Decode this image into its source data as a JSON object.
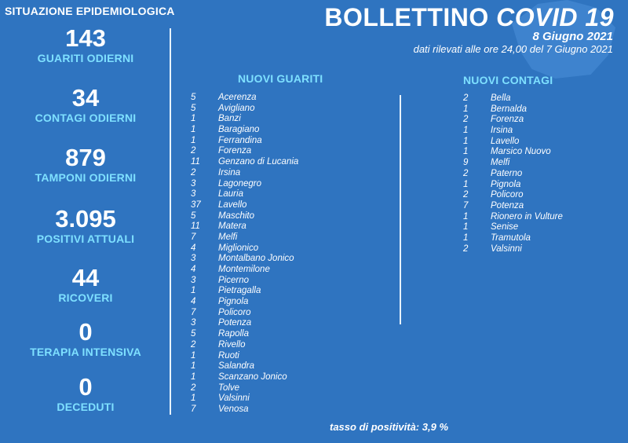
{
  "header": {
    "situazione": "SITUAZIONE EPIDEMIOLOGICA",
    "title_main": "BOLLETTINO ",
    "title_em": "COVID 19",
    "date": "8 Giugno 2021",
    "note": "dati rilevati alle ore 24,00 del 7 Giugno 2021"
  },
  "stats": [
    {
      "value": "143",
      "label": "GUARITI ODIERNI"
    },
    {
      "value": "34",
      "label": "CONTAGI ODIERNI"
    },
    {
      "value": "879",
      "label": "TAMPONI ODIERNI"
    },
    {
      "value": "3.095",
      "label": "POSITIVI ATTUALI"
    },
    {
      "value": "44",
      "label": "RICOVERI"
    },
    {
      "value": "0",
      "label": "TERAPIA INTENSIVA"
    },
    {
      "value": "0",
      "label": "DECEDUTI"
    }
  ],
  "guariti": {
    "heading": "NUOVI GUARITI",
    "rows": [
      {
        "n": "5",
        "name": "Acerenza"
      },
      {
        "n": "5",
        "name": "Avigliano"
      },
      {
        "n": "1",
        "name": "Banzi"
      },
      {
        "n": "1",
        "name": "Baragiano"
      },
      {
        "n": "1",
        "name": "Ferrandina"
      },
      {
        "n": "2",
        "name": "Forenza"
      },
      {
        "n": "11",
        "name": "Genzano di Lucania"
      },
      {
        "n": "2",
        "name": "Irsina"
      },
      {
        "n": "3",
        "name": "Lagonegro"
      },
      {
        "n": "3",
        "name": "Lauria"
      },
      {
        "n": "37",
        "name": "Lavello"
      },
      {
        "n": "5",
        "name": "Maschito"
      },
      {
        "n": "11",
        "name": "Matera"
      },
      {
        "n": "7",
        "name": "Melfi"
      },
      {
        "n": "4",
        "name": "Miglionico"
      },
      {
        "n": "3",
        "name": "Montalbano Jonico"
      },
      {
        "n": "4",
        "name": "Montemilone"
      },
      {
        "n": "3",
        "name": "Picerno"
      },
      {
        "n": "1",
        "name": "Pietragalla"
      },
      {
        "n": "4",
        "name": "Pignola"
      },
      {
        "n": "7",
        "name": "Policoro"
      },
      {
        "n": "3",
        "name": "Potenza"
      },
      {
        "n": "5",
        "name": "Rapolla"
      },
      {
        "n": "2",
        "name": "Rivello"
      },
      {
        "n": "1",
        "name": "Ruoti"
      },
      {
        "n": "1",
        "name": "Salandra"
      },
      {
        "n": "1",
        "name": "Scanzano Jonico"
      },
      {
        "n": "2",
        "name": "Tolve"
      },
      {
        "n": "1",
        "name": "Valsinni"
      },
      {
        "n": "7",
        "name": "Venosa"
      }
    ]
  },
  "contagi": {
    "heading": "NUOVI CONTAGI",
    "rows": [
      {
        "n": "2",
        "name": "Bella"
      },
      {
        "n": "1",
        "name": "Bernalda"
      },
      {
        "n": "2",
        "name": "Forenza"
      },
      {
        "n": "1",
        "name": "Irsina"
      },
      {
        "n": "1",
        "name": "Lavello"
      },
      {
        "n": "1",
        "name": "Marsico Nuovo"
      },
      {
        "n": "9",
        "name": "Melfi"
      },
      {
        "n": "2",
        "name": "Paterno"
      },
      {
        "n": "1",
        "name": "Pignola"
      },
      {
        "n": "2",
        "name": "Policoro"
      },
      {
        "n": "7",
        "name": "Potenza"
      },
      {
        "n": "1",
        "name": "Rionero in Vulture"
      },
      {
        "n": "1",
        "name": "Senise"
      },
      {
        "n": "1",
        "name": "Tramutola"
      },
      {
        "n": "2",
        "name": "Valsinni"
      }
    ]
  },
  "footer": {
    "label": "tasso di positività:",
    "value": "3,9 %"
  },
  "colors": {
    "background": "#2f74c0",
    "accent": "#7ee0ff",
    "text": "#ffffff"
  }
}
